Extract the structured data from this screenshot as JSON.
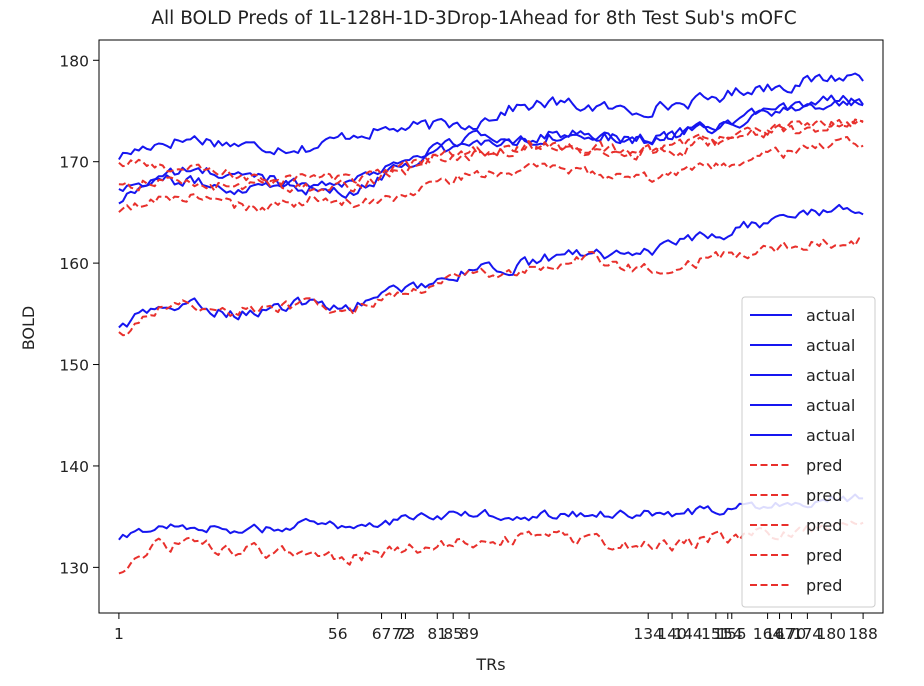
{
  "chart_data": {
    "type": "line",
    "title": "All BOLD Preds of 1L-128H-1D-3Drop-1Ahead for 8th Test Sub's mOFC",
    "xlabel": "TRs",
    "ylabel": "BOLD",
    "xlim": [
      -4,
      193
    ],
    "ylim": [
      125.5,
      182
    ],
    "xticks": [
      1,
      56,
      67,
      72,
      73,
      81,
      85,
      89,
      134,
      140,
      144,
      151,
      154,
      155,
      164,
      167,
      170,
      174,
      180,
      188
    ],
    "xtick_labels": [
      "1",
      "56",
      "67",
      "72",
      "73",
      "81",
      "85",
      "89",
      "134",
      "140",
      "144",
      "151",
      "154",
      "155",
      "164",
      "167",
      "170",
      "174",
      "180",
      "188"
    ],
    "yticks": [
      130,
      140,
      150,
      160,
      170,
      180
    ],
    "ytick_labels": [
      "130",
      "140",
      "150",
      "160",
      "170",
      "180"
    ],
    "legend_position": "lower-right",
    "series_style": {
      "actual": {
        "color": "#1616f0",
        "dash": "solid"
      },
      "pred": {
        "color": "#e8302c",
        "dash": "dashed"
      }
    },
    "series": [
      {
        "name": "actual",
        "kind": "actual",
        "anchors": [
          [
            1,
            170.5
          ],
          [
            10,
            171.8
          ],
          [
            20,
            172.3
          ],
          [
            35,
            171.5
          ],
          [
            50,
            171.4
          ],
          [
            60,
            172.8
          ],
          [
            75,
            173.4
          ],
          [
            90,
            173.8
          ],
          [
            100,
            175.3
          ],
          [
            110,
            175.8
          ],
          [
            120,
            175.4
          ],
          [
            130,
            175.0
          ],
          [
            140,
            175.6
          ],
          [
            150,
            176.2
          ],
          [
            160,
            177.3
          ],
          [
            170,
            177.6
          ],
          [
            180,
            178.3
          ],
          [
            188,
            178.5
          ]
        ],
        "amp": 0.55
      },
      {
        "name": "actual",
        "kind": "actual",
        "anchors": [
          [
            1,
            167.5
          ],
          [
            10,
            168.3
          ],
          [
            20,
            168.0
          ],
          [
            30,
            167.3
          ],
          [
            40,
            168.0
          ],
          [
            50,
            167.8
          ],
          [
            60,
            168.2
          ],
          [
            70,
            169.8
          ],
          [
            80,
            171.3
          ],
          [
            90,
            172.4
          ],
          [
            100,
            172.3
          ],
          [
            110,
            172.8
          ],
          [
            120,
            172.6
          ],
          [
            130,
            172.3
          ],
          [
            140,
            172.6
          ],
          [
            150,
            173.4
          ],
          [
            160,
            174.5
          ],
          [
            170,
            175.2
          ],
          [
            180,
            176.0
          ],
          [
            188,
            176.2
          ]
        ],
        "amp": 0.5
      },
      {
        "name": "actual",
        "kind": "actual",
        "anchors": [
          [
            1,
            166.0
          ],
          [
            10,
            168.5
          ],
          [
            20,
            169.2
          ],
          [
            30,
            168.6
          ],
          [
            40,
            168.4
          ],
          [
            50,
            167.2
          ],
          [
            60,
            166.8
          ],
          [
            70,
            169.4
          ],
          [
            80,
            170.8
          ],
          [
            90,
            171.8
          ],
          [
            100,
            172.0
          ],
          [
            110,
            172.6
          ],
          [
            120,
            172.4
          ],
          [
            130,
            172.0
          ],
          [
            140,
            172.5
          ],
          [
            150,
            173.2
          ],
          [
            160,
            174.2
          ],
          [
            170,
            175.3
          ],
          [
            180,
            176.2
          ],
          [
            188,
            175.8
          ]
        ],
        "amp": 0.5
      },
      {
        "name": "actual",
        "kind": "actual",
        "anchors": [
          [
            1,
            153.7
          ],
          [
            10,
            155.5
          ],
          [
            20,
            155.8
          ],
          [
            30,
            155.0
          ],
          [
            40,
            155.5
          ],
          [
            50,
            156.2
          ],
          [
            60,
            155.6
          ],
          [
            70,
            157.3
          ],
          [
            80,
            158.2
          ],
          [
            90,
            159.3
          ],
          [
            100,
            159.6
          ],
          [
            110,
            160.6
          ],
          [
            120,
            161.2
          ],
          [
            130,
            160.4
          ],
          [
            140,
            161.8
          ],
          [
            150,
            162.6
          ],
          [
            160,
            163.8
          ],
          [
            170,
            164.6
          ],
          [
            180,
            165.3
          ],
          [
            188,
            165.1
          ]
        ],
        "amp": 0.5
      },
      {
        "name": "actual",
        "kind": "actual",
        "anchors": [
          [
            1,
            132.7
          ],
          [
            10,
            134.0
          ],
          [
            20,
            134.1
          ],
          [
            30,
            133.6
          ],
          [
            40,
            133.9
          ],
          [
            50,
            134.3
          ],
          [
            60,
            134.1
          ],
          [
            70,
            134.6
          ],
          [
            80,
            135.0
          ],
          [
            90,
            135.3
          ],
          [
            100,
            135.1
          ],
          [
            110,
            135.2
          ],
          [
            120,
            135.3
          ],
          [
            130,
            135.3
          ],
          [
            140,
            135.3
          ],
          [
            150,
            135.6
          ],
          [
            160,
            136.1
          ],
          [
            170,
            136.4
          ],
          [
            180,
            136.7
          ],
          [
            188,
            137.0
          ]
        ],
        "amp": 0.4
      },
      {
        "name": "pred",
        "kind": "pred",
        "anchors": [
          [
            1,
            169.8
          ],
          [
            10,
            169.6
          ],
          [
            20,
            169.2
          ],
          [
            35,
            168.4
          ],
          [
            50,
            168.6
          ],
          [
            60,
            168.1
          ],
          [
            70,
            169.2
          ],
          [
            80,
            170.3
          ],
          [
            90,
            170.9
          ],
          [
            100,
            171.3
          ],
          [
            110,
            171.7
          ],
          [
            120,
            171.3
          ],
          [
            130,
            171.1
          ],
          [
            140,
            171.4
          ],
          [
            150,
            172.1
          ],
          [
            160,
            173.2
          ],
          [
            170,
            173.4
          ],
          [
            180,
            173.6
          ],
          [
            188,
            173.8
          ]
        ],
        "amp": 0.5
      },
      {
        "name": "pred",
        "kind": "pred",
        "anchors": [
          [
            1,
            167.6
          ],
          [
            10,
            168.1
          ],
          [
            20,
            167.9
          ],
          [
            30,
            167.4
          ],
          [
            40,
            168.0
          ],
          [
            50,
            167.2
          ],
          [
            60,
            167.6
          ],
          [
            70,
            168.6
          ],
          [
            80,
            170.2
          ],
          [
            90,
            170.8
          ],
          [
            100,
            171.3
          ],
          [
            110,
            171.6
          ],
          [
            120,
            171.4
          ],
          [
            130,
            170.8
          ],
          [
            140,
            171.0
          ],
          [
            150,
            171.8
          ],
          [
            160,
            172.8
          ],
          [
            170,
            173.1
          ],
          [
            180,
            173.6
          ],
          [
            188,
            173.9
          ]
        ],
        "amp": 0.55
      },
      {
        "name": "pred",
        "kind": "pred",
        "anchors": [
          [
            1,
            164.8
          ],
          [
            10,
            166.3
          ],
          [
            20,
            166.6
          ],
          [
            30,
            165.6
          ],
          [
            40,
            165.5
          ],
          [
            50,
            166.2
          ],
          [
            60,
            165.9
          ],
          [
            70,
            166.5
          ],
          [
            80,
            167.8
          ],
          [
            90,
            168.7
          ],
          [
            100,
            169.1
          ],
          [
            110,
            169.3
          ],
          [
            120,
            168.9
          ],
          [
            130,
            168.2
          ],
          [
            140,
            168.6
          ],
          [
            150,
            169.3
          ],
          [
            160,
            170.3
          ],
          [
            170,
            170.9
          ],
          [
            180,
            171.8
          ],
          [
            188,
            171.6
          ]
        ],
        "amp": 0.5
      },
      {
        "name": "pred",
        "kind": "pred",
        "anchors": [
          [
            1,
            152.9
          ],
          [
            10,
            155.4
          ],
          [
            20,
            156.0
          ],
          [
            30,
            155.2
          ],
          [
            40,
            155.6
          ],
          [
            50,
            156.0
          ],
          [
            60,
            155.3
          ],
          [
            70,
            156.9
          ],
          [
            80,
            158.0
          ],
          [
            90,
            159.0
          ],
          [
            100,
            159.1
          ],
          [
            110,
            159.6
          ],
          [
            120,
            160.5
          ],
          [
            130,
            159.6
          ],
          [
            140,
            159.2
          ],
          [
            150,
            160.6
          ],
          [
            160,
            161.2
          ],
          [
            170,
            161.8
          ],
          [
            180,
            162.0
          ],
          [
            188,
            162.3
          ]
        ],
        "amp": 0.5
      },
      {
        "name": "pred",
        "kind": "pred",
        "anchors": [
          [
            1,
            129.0
          ],
          [
            5,
            131.0
          ],
          [
            10,
            132.0
          ],
          [
            20,
            132.3
          ],
          [
            30,
            131.6
          ],
          [
            40,
            131.6
          ],
          [
            50,
            131.3
          ],
          [
            60,
            131.0
          ],
          [
            70,
            131.7
          ],
          [
            80,
            132.2
          ],
          [
            90,
            132.5
          ],
          [
            100,
            132.8
          ],
          [
            110,
            133.0
          ],
          [
            120,
            132.5
          ],
          [
            130,
            132.2
          ],
          [
            140,
            132.1
          ],
          [
            150,
            132.9
          ],
          [
            160,
            133.3
          ],
          [
            170,
            133.6
          ],
          [
            180,
            133.8
          ],
          [
            188,
            134.0
          ]
        ],
        "amp": 0.55
      }
    ]
  }
}
